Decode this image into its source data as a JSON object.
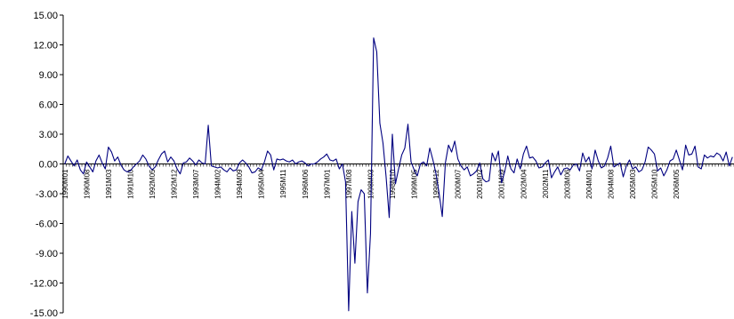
{
  "chart_data": {
    "type": "line",
    "title": "",
    "xlabel": "",
    "ylabel": "",
    "ylim": [
      -15,
      15
    ],
    "yticks": [
      "15.00",
      "12.00",
      "9.00",
      "6.00",
      "3.00",
      "0.00",
      "-3.00",
      "-6.00",
      "-9.00",
      "-12.00",
      "-15.00"
    ],
    "xtick_labels": [
      "1990M01",
      "1990M08",
      "1991M03",
      "1991M10",
      "1992M05",
      "1992M12",
      "1993M07",
      "1994M02",
      "1994M09",
      "1995M04",
      "1995M11",
      "1996M06",
      "1997M01",
      "1997M08",
      "1998M03",
      "1998M10",
      "1999M05",
      "1999M12",
      "2000M07",
      "2001M02",
      "2001M09",
      "2002M04",
      "2002M11",
      "2003M06",
      "2004M01",
      "2004M08",
      "2005M03",
      "2005M10",
      "2006M05"
    ],
    "series": [
      {
        "color": "#000080",
        "values": [
          0.0,
          0.8,
          0.3,
          -0.2,
          0.4,
          -0.6,
          -1.0,
          0.2,
          -0.3,
          -0.8,
          0.3,
          0.9,
          0.1,
          -0.5,
          1.7,
          1.2,
          0.3,
          0.7,
          -0.1,
          -0.6,
          -0.8,
          -0.7,
          -0.3,
          0.0,
          0.3,
          0.9,
          0.5,
          -0.2,
          -0.6,
          -0.3,
          0.4,
          1.0,
          1.3,
          0.2,
          0.7,
          0.3,
          -0.5,
          -1.0,
          0.1,
          0.2,
          0.6,
          0.3,
          -0.1,
          0.4,
          0.1,
          0.0,
          3.9,
          -0.2,
          -0.3,
          -0.4,
          -0.3,
          -0.6,
          -0.8,
          -0.4,
          -0.7,
          -0.6,
          0.1,
          0.4,
          0.1,
          -0.3,
          -0.9,
          -0.8,
          -0.4,
          -0.6,
          0.2,
          1.3,
          0.9,
          -0.6,
          0.5,
          0.4,
          0.5,
          0.3,
          0.2,
          0.4,
          0.0,
          0.2,
          0.3,
          0.1,
          -0.2,
          0.0,
          0.0,
          0.2,
          0.5,
          0.7,
          1.0,
          0.4,
          0.3,
          0.5,
          -0.5,
          0.0,
          -1.8,
          -14.8,
          -4.8,
          -10.0,
          -3.8,
          -2.6,
          -3.0,
          -13.0,
          -7.0,
          12.7,
          11.3,
          4.1,
          2.1,
          -1.3,
          -5.4,
          3.0,
          -2.0,
          -0.5,
          0.9,
          1.6,
          4.0,
          0.2,
          -0.6,
          -1.2,
          0.0,
          0.2,
          -0.2,
          1.6,
          0.4,
          -1.0,
          -3.0,
          -5.3,
          0.1,
          1.9,
          1.2,
          2.3,
          0.5,
          -0.2,
          -0.6,
          -0.3,
          -1.2,
          -1.0,
          -0.7,
          0.1,
          -1.5,
          -1.8,
          -1.7,
          1.1,
          0.3,
          1.3,
          -1.9,
          -0.8,
          0.8,
          -0.5,
          -0.9,
          0.5,
          -0.5,
          1.0,
          1.8,
          0.6,
          0.7,
          0.3,
          -0.4,
          -0.3,
          0.1,
          0.4,
          -1.4,
          -0.8,
          -0.3,
          -1.1,
          -0.5,
          -0.4,
          -0.6,
          -0.1,
          0.0,
          -0.7,
          1.1,
          0.2,
          0.7,
          -0.5,
          1.4,
          0.3,
          -0.4,
          -0.2,
          0.6,
          1.8,
          -0.3,
          -0.1,
          0.1,
          -1.3,
          -0.2,
          0.4,
          -0.5,
          -0.3,
          -0.8,
          -0.6,
          0.2,
          1.7,
          1.4,
          1.0,
          -0.7,
          -0.4,
          -1.2,
          -0.6,
          0.3,
          0.5,
          1.4,
          0.4,
          -0.6,
          1.9,
          0.9,
          1.0,
          1.8,
          -0.3,
          -0.5,
          0.9,
          0.6,
          0.8,
          0.7,
          1.1,
          0.9,
          0.3,
          1.2,
          -0.2,
          0.7
        ]
      }
    ]
  }
}
